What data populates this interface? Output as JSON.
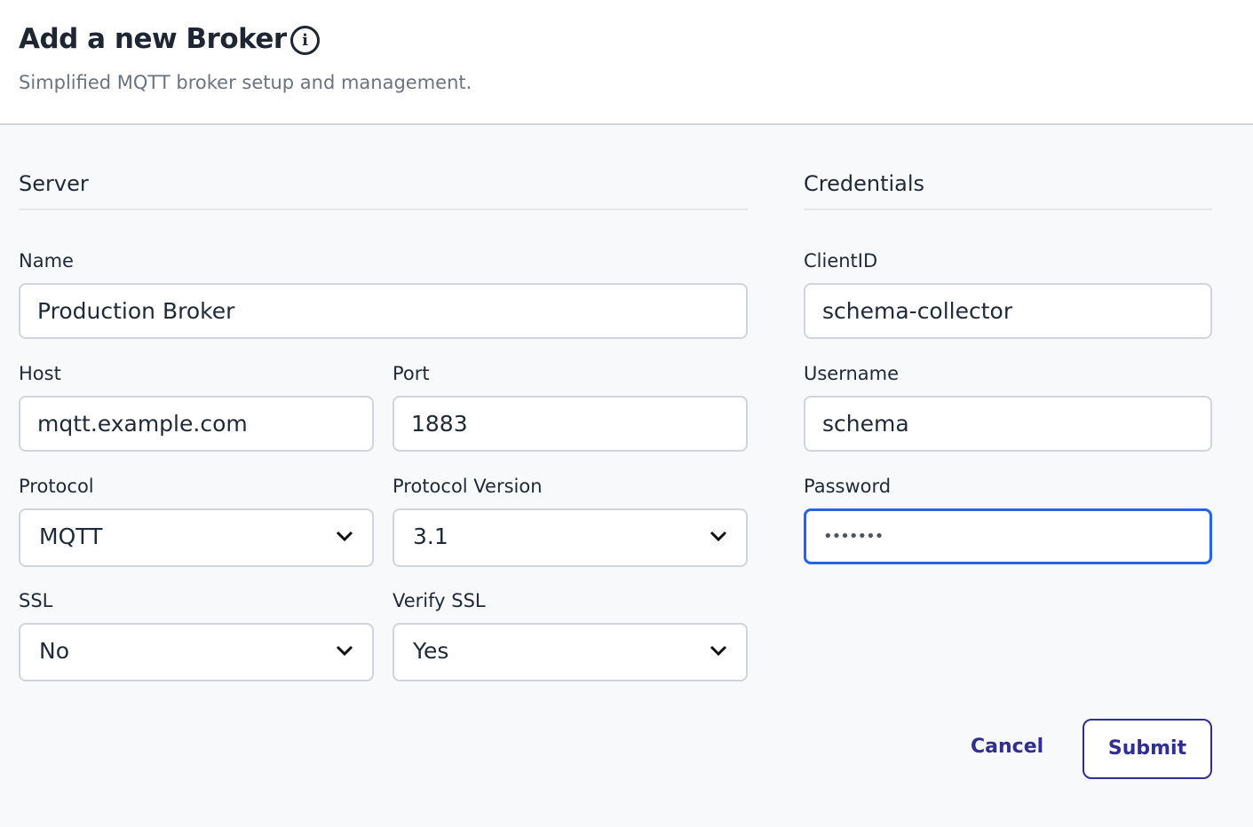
{
  "header": {
    "title": "Add a new Broker",
    "info_icon": "info-circle-icon",
    "subtitle": "Simplified MQTT broker setup and management."
  },
  "server": {
    "heading": "Server",
    "name": {
      "label": "Name",
      "value": "Production Broker"
    },
    "host": {
      "label": "Host",
      "value": "mqtt.example.com"
    },
    "port": {
      "label": "Port",
      "value": "1883"
    },
    "protocol": {
      "label": "Protocol",
      "value": "MQTT"
    },
    "protocol_version": {
      "label": "Protocol Version",
      "value": "3.1"
    },
    "ssl": {
      "label": "SSL",
      "value": "No"
    },
    "verify_ssl": {
      "label": "Verify SSL",
      "value": "Yes"
    }
  },
  "credentials": {
    "heading": "Credentials",
    "client_id": {
      "label": "ClientID",
      "value": "schema-collector"
    },
    "username": {
      "label": "Username",
      "value": "schema"
    },
    "password": {
      "label": "Password",
      "value": "•••••••"
    }
  },
  "actions": {
    "cancel": "Cancel",
    "submit": "Submit"
  },
  "colors": {
    "accent": "#312e91",
    "focus": "#2563eb"
  }
}
